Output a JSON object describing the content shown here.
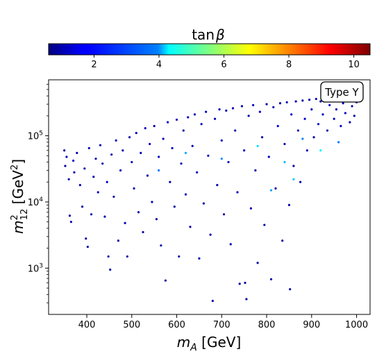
{
  "chart_data": {
    "type": "scatter",
    "title": "",
    "xlabel_main": "m",
    "xlabel_sub": "A",
    "xlabel_unit": " [GeV]",
    "ylabel_main": "m",
    "ylabel_sup": "2",
    "ylabel_sub": "12",
    "ylabel_unit_open": " [GeV",
    "ylabel_unit_sup": "2",
    "ylabel_unit_close": "]",
    "xlim": [
      315,
      1030
    ],
    "ylim": [
      200,
      700000
    ],
    "y_scale": "log",
    "x_ticks": [
      400,
      500,
      600,
      700,
      800,
      900,
      1000
    ],
    "x_tick_labels": [
      "400",
      "500",
      "600",
      "700",
      "800",
      "900",
      "1000"
    ],
    "y_ticks": [
      1000,
      10000,
      100000
    ],
    "y_tick_labels": [
      {
        "base": "10",
        "exp": "3"
      },
      {
        "base": "10",
        "exp": "4"
      },
      {
        "base": "10",
        "exp": "5"
      }
    ],
    "annotation": "Type Y",
    "annotation_position": "top-right",
    "grid": false,
    "colorbar": {
      "label_main": "tan",
      "label_greek": "β",
      "range": [
        0.6,
        10.5
      ],
      "ticks": [
        2,
        4,
        6,
        8,
        10
      ],
      "tick_labels": [
        "2",
        "4",
        "6",
        "8",
        "10"
      ],
      "colormap": "jet",
      "position": "top"
    },
    "series": [
      {
        "marker_size": 1.6,
        "sampled": true,
        "points": [
          [
            350,
            60000,
            1.1
          ],
          [
            352,
            35000,
            1.0
          ],
          [
            355,
            48000,
            1.2
          ],
          [
            360,
            22000,
            1.0
          ],
          [
            362,
            6200,
            1.1
          ],
          [
            365,
            5000,
            1.0
          ],
          [
            370,
            42000,
            1.3
          ],
          [
            372,
            28000,
            1.1
          ],
          [
            378,
            55000,
            1.0
          ],
          [
            385,
            18000,
            1.2
          ],
          [
            390,
            8500,
            1.0
          ],
          [
            395,
            32000,
            1.1
          ],
          [
            398,
            2800,
            1.0
          ],
          [
            402,
            2100,
            1.0
          ],
          [
            405,
            65000,
            1.2
          ],
          [
            410,
            6500,
            1.0
          ],
          [
            415,
            24000,
            1.1
          ],
          [
            420,
            45000,
            1.0
          ],
          [
            425,
            14000,
            1.3
          ],
          [
            430,
            72000,
            1.1
          ],
          [
            435,
            38000,
            1.0
          ],
          [
            440,
            6000,
            1.0
          ],
          [
            445,
            20000,
            1.2
          ],
          [
            448,
            1500,
            1.0
          ],
          [
            452,
            950,
            1.0
          ],
          [
            455,
            52000,
            1.1
          ],
          [
            460,
            12000,
            1.0
          ],
          [
            465,
            85000,
            1.3
          ],
          [
            470,
            2600,
            1.0
          ],
          [
            475,
            30000,
            1.2
          ],
          [
            480,
            60000,
            1.0
          ],
          [
            485,
            4800,
            1.1
          ],
          [
            490,
            1500,
            1.0
          ],
          [
            495,
            95000,
            1.2
          ],
          [
            500,
            40000,
            1.0
          ],
          [
            505,
            16000,
            1.1
          ],
          [
            510,
            110000,
            1.3
          ],
          [
            515,
            7000,
            1.0
          ],
          [
            520,
            55000,
            1.1
          ],
          [
            525,
            3500,
            1.0
          ],
          [
            530,
            130000,
            1.2
          ],
          [
            535,
            25000,
            1.0
          ],
          [
            540,
            75000,
            1.4
          ],
          [
            545,
            10000,
            1.1
          ],
          [
            550,
            140000,
            1.0
          ],
          [
            555,
            5500,
            1.0
          ],
          [
            560,
            48000,
            1.2
          ],
          [
            565,
            2200,
            1.0
          ],
          [
            570,
            90000,
            1.1
          ],
          [
            575,
            650,
            1.0
          ],
          [
            580,
            160000,
            1.3
          ],
          [
            585,
            20000,
            1.0
          ],
          [
            590,
            65000,
            1.2
          ],
          [
            595,
            8500,
            1.0
          ],
          [
            600,
            175000,
            1.1
          ],
          [
            605,
            1500,
            1.0
          ],
          [
            610,
            38000,
            1.2
          ],
          [
            615,
            120000,
            1.0
          ],
          [
            620,
            13000,
            1.1
          ],
          [
            625,
            190000,
            1.3
          ],
          [
            630,
            4200,
            1.0
          ],
          [
            635,
            70000,
            1.1
          ],
          [
            640,
            210000,
            1.0
          ],
          [
            645,
            28000,
            1.2
          ],
          [
            650,
            1400,
            1.0
          ],
          [
            655,
            150000,
            1.1
          ],
          [
            660,
            9500,
            1.0
          ],
          [
            665,
            230000,
            1.4
          ],
          [
            670,
            50000,
            1.1
          ],
          [
            675,
            3200,
            1.0
          ],
          [
            680,
            320,
            1.0
          ],
          [
            685,
            180000,
            1.2
          ],
          [
            690,
            18000,
            1.0
          ],
          [
            695,
            250000,
            1.1
          ],
          [
            700,
            85000,
            1.3
          ],
          [
            705,
            6500,
            1.0
          ],
          [
            710,
            240000,
            1.0
          ],
          [
            715,
            40000,
            1.2
          ],
          [
            720,
            2300,
            1.0
          ],
          [
            725,
            260000,
            1.1
          ],
          [
            730,
            120000,
            1.0
          ],
          [
            735,
            14000,
            1.2
          ],
          [
            740,
            580,
            1.0
          ],
          [
            745,
            280000,
            1.1
          ],
          [
            750,
            60000,
            1.4
          ],
          [
            752,
            600,
            1.0
          ],
          [
            755,
            340,
            1.0
          ],
          [
            760,
            200000,
            1.0
          ],
          [
            765,
            8000,
            1.1
          ],
          [
            770,
            290000,
            1.2
          ],
          [
            775,
            30000,
            1.0
          ],
          [
            780,
            1200,
            1.0
          ],
          [
            785,
            230000,
            1.3
          ],
          [
            790,
            95000,
            1.0
          ],
          [
            795,
            4500,
            1.1
          ],
          [
            800,
            300000,
            1.0
          ],
          [
            805,
            48000,
            1.2
          ],
          [
            810,
            680,
            1.0
          ],
          [
            815,
            270000,
            1.1
          ],
          [
            820,
            16000,
            1.0
          ],
          [
            825,
            140000,
            1.5
          ],
          [
            830,
            310000,
            1.0
          ],
          [
            835,
            2600,
            1.0
          ],
          [
            840,
            75000,
            1.2
          ],
          [
            845,
            320000,
            1.1
          ],
          [
            850,
            9000,
            1.0
          ],
          [
            852,
            480,
            1.0
          ],
          [
            855,
            210000,
            1.3
          ],
          [
            860,
            35000,
            1.0
          ],
          [
            865,
            330000,
            1.1
          ],
          [
            870,
            120000,
            1.2
          ],
          [
            875,
            20000,
            1.0
          ],
          [
            880,
            340000,
            1.0
          ],
          [
            885,
            180000,
            1.4
          ],
          [
            890,
            60000,
            1.1
          ],
          [
            895,
            350000,
            1.0
          ],
          [
            900,
            250000,
            1.2
          ],
          [
            905,
            95000,
            1.0
          ],
          [
            910,
            360000,
            1.1
          ],
          [
            915,
            150000,
            1.3
          ],
          [
            920,
            330000,
            1.0
          ],
          [
            925,
            210000,
            1.2
          ],
          [
            930,
            370000,
            1.1
          ],
          [
            935,
            120000,
            1.0
          ],
          [
            940,
            290000,
            1.5
          ],
          [
            945,
            360000,
            1.0
          ],
          [
            950,
            180000,
            1.2
          ],
          [
            955,
            250000,
            1.1
          ],
          [
            960,
            340000,
            1.0
          ],
          [
            965,
            140000,
            1.3
          ],
          [
            970,
            310000,
            1.0
          ],
          [
            975,
            220000,
            1.1
          ],
          [
            980,
            350000,
            1.2
          ],
          [
            985,
            160000,
            1.0
          ],
          [
            990,
            280000,
            1.1
          ],
          [
            995,
            200000,
            1.0
          ],
          [
            1000,
            320000,
            1.2
          ],
          [
            560,
            30000,
            3.0
          ],
          [
            620,
            55000,
            3.5
          ],
          [
            700,
            45000,
            3.2
          ],
          [
            780,
            70000,
            4.0
          ],
          [
            840,
            40000,
            3.6
          ],
          [
            880,
            90000,
            3.1
          ],
          [
            920,
            60000,
            4.2
          ],
          [
            810,
            15000,
            3.4
          ],
          [
            860,
            22000,
            3.8
          ],
          [
            960,
            80000,
            3.0
          ]
        ]
      }
    ]
  }
}
